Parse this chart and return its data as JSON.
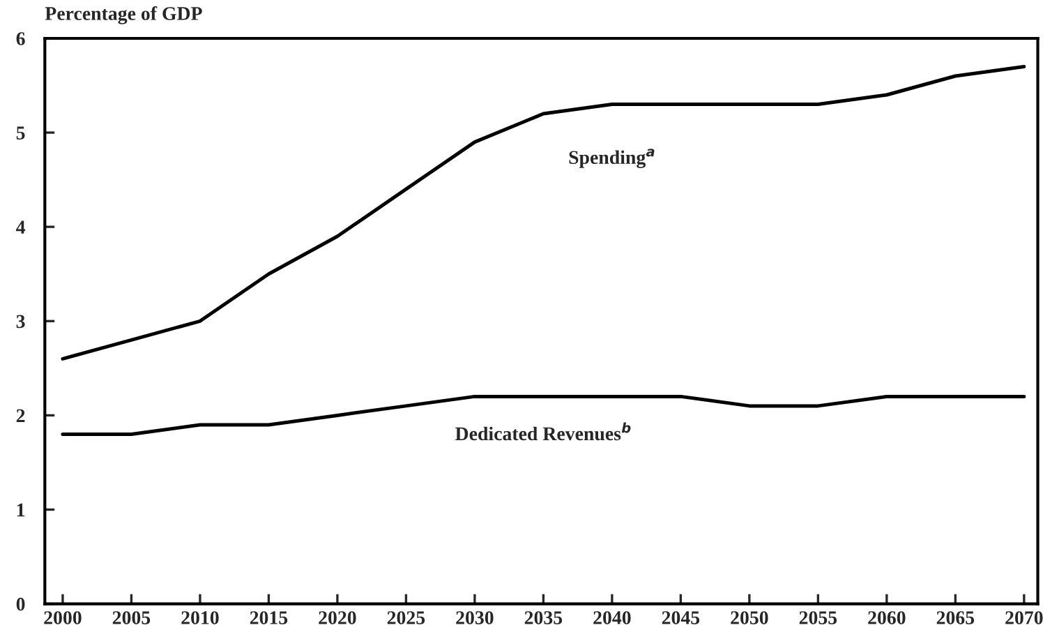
{
  "chart_data": {
    "type": "line",
    "ylabel": "Percentage of GDP",
    "x": [
      2000,
      2005,
      2010,
      2015,
      2020,
      2025,
      2030,
      2035,
      2040,
      2045,
      2050,
      2055,
      2060,
      2065,
      2070
    ],
    "series": [
      {
        "name": "Spending$^{a}$",
        "color": "#000000",
        "values": [
          2.6,
          2.8,
          3.0,
          3.5,
          3.9,
          4.4,
          4.9,
          5.2,
          5.3,
          5.3,
          5.3,
          5.3,
          5.4,
          5.6,
          5.7
        ]
      },
      {
        "name": "Dedicated Revenues$^{b}$",
        "color": "#000000",
        "values": [
          1.8,
          1.8,
          1.9,
          1.9,
          2.0,
          2.1,
          2.2,
          2.2,
          2.2,
          2.2,
          2.1,
          2.1,
          2.2,
          2.2,
          2.2
        ]
      }
    ],
    "xlim": [
      1998.7,
      2071
    ],
    "ylim": [
      0,
      6
    ],
    "xticks": [
      2000,
      2005,
      2010,
      2015,
      2020,
      2025,
      2030,
      2035,
      2040,
      2045,
      2050,
      2055,
      2060,
      2065,
      2070
    ],
    "yticks": [
      0,
      1,
      2,
      3,
      4,
      5,
      6
    ],
    "grid": false,
    "legend": false,
    "marker": "none",
    "line_style": "solid"
  }
}
